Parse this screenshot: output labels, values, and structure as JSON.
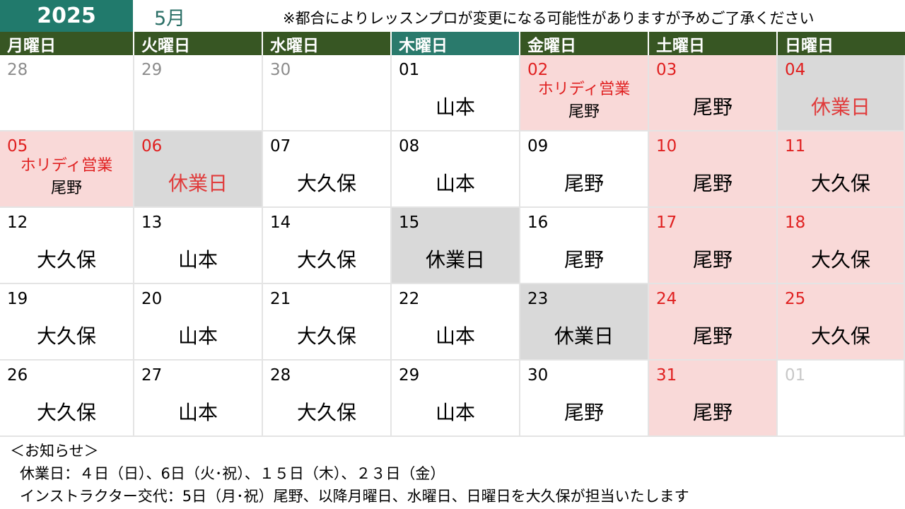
{
  "header": {
    "year": "2025",
    "month": "5月",
    "notice": "※都合によりレッスンプロが変更になる可能性がありますが予めご了承ください"
  },
  "colors": {
    "year_bg": "#217a6c",
    "weekday_header": "#375623",
    "thursday_header": "#2a7a6c",
    "weekend_bg": "#f9d9d8",
    "closed_bg": "#d9d9d9",
    "red_text": "#e02020"
  },
  "weekdays": [
    "月曜日",
    "火曜日",
    "水曜日",
    "木曜日",
    "金曜日",
    "土曜日",
    "日曜日"
  ],
  "weeks": [
    [
      {
        "date": "28",
        "date_style": "gray",
        "bg": "white",
        "name": ""
      },
      {
        "date": "29",
        "date_style": "gray",
        "bg": "white",
        "name": ""
      },
      {
        "date": "30",
        "date_style": "gray",
        "bg": "white",
        "name": ""
      },
      {
        "date": "01",
        "date_style": "black",
        "bg": "white",
        "name": "山本"
      },
      {
        "date": "02",
        "date_style": "red",
        "bg": "pink",
        "holiday": "ホリディ営業",
        "name": "尾野"
      },
      {
        "date": "03",
        "date_style": "red",
        "bg": "pink",
        "name": "尾野"
      },
      {
        "date": "04",
        "date_style": "red",
        "bg": "gray",
        "name": "休業日",
        "name_style": "closed"
      }
    ],
    [
      {
        "date": "05",
        "date_style": "red",
        "bg": "pink",
        "holiday": "ホリディ営業",
        "name": "尾野"
      },
      {
        "date": "06",
        "date_style": "red",
        "bg": "gray",
        "name": "休業日",
        "name_style": "closed"
      },
      {
        "date": "07",
        "date_style": "black",
        "bg": "white",
        "name": "大久保"
      },
      {
        "date": "08",
        "date_style": "black",
        "bg": "white",
        "name": "山本"
      },
      {
        "date": "09",
        "date_style": "black",
        "bg": "white",
        "name": "尾野"
      },
      {
        "date": "10",
        "date_style": "red",
        "bg": "pink",
        "name": "尾野"
      },
      {
        "date": "11",
        "date_style": "red",
        "bg": "pink",
        "name": "大久保"
      }
    ],
    [
      {
        "date": "12",
        "date_style": "black",
        "bg": "white",
        "name": "大久保"
      },
      {
        "date": "13",
        "date_style": "black",
        "bg": "white",
        "name": "山本"
      },
      {
        "date": "14",
        "date_style": "black",
        "bg": "white",
        "name": "大久保"
      },
      {
        "date": "15",
        "date_style": "black",
        "bg": "gray",
        "name": "休業日",
        "name_style": "closed-black"
      },
      {
        "date": "16",
        "date_style": "black",
        "bg": "white",
        "name": "尾野"
      },
      {
        "date": "17",
        "date_style": "red",
        "bg": "pink",
        "name": "尾野"
      },
      {
        "date": "18",
        "date_style": "red",
        "bg": "pink",
        "name": "大久保"
      }
    ],
    [
      {
        "date": "19",
        "date_style": "black",
        "bg": "white",
        "name": "大久保"
      },
      {
        "date": "20",
        "date_style": "black",
        "bg": "white",
        "name": "山本"
      },
      {
        "date": "21",
        "date_style": "black",
        "bg": "white",
        "name": "大久保"
      },
      {
        "date": "22",
        "date_style": "black",
        "bg": "white",
        "name": "山本"
      },
      {
        "date": "23",
        "date_style": "black",
        "bg": "gray",
        "name": "休業日",
        "name_style": "closed-black"
      },
      {
        "date": "24",
        "date_style": "red",
        "bg": "pink",
        "name": "尾野"
      },
      {
        "date": "25",
        "date_style": "red",
        "bg": "pink",
        "name": "大久保"
      }
    ],
    [
      {
        "date": "26",
        "date_style": "black",
        "bg": "white",
        "name": "大久保"
      },
      {
        "date": "27",
        "date_style": "black",
        "bg": "white",
        "name": "山本"
      },
      {
        "date": "28",
        "date_style": "black",
        "bg": "white",
        "name": "大久保"
      },
      {
        "date": "29",
        "date_style": "black",
        "bg": "white",
        "name": "山本"
      },
      {
        "date": "30",
        "date_style": "black",
        "bg": "white",
        "name": "尾野"
      },
      {
        "date": "31",
        "date_style": "red",
        "bg": "pink",
        "name": "尾野"
      },
      {
        "date": "01",
        "date_style": "light",
        "bg": "white",
        "name": ""
      }
    ]
  ],
  "notes": {
    "title": "＜お知らせ＞",
    "line1": "休業日：４日（日）、6日（火･祝）、１５日（木）、２３日（金）",
    "line2": "インストラクター交代：5日（月･祝）尾野、以降月曜日、水曜日、日曜日を大久保が担当いたします"
  }
}
